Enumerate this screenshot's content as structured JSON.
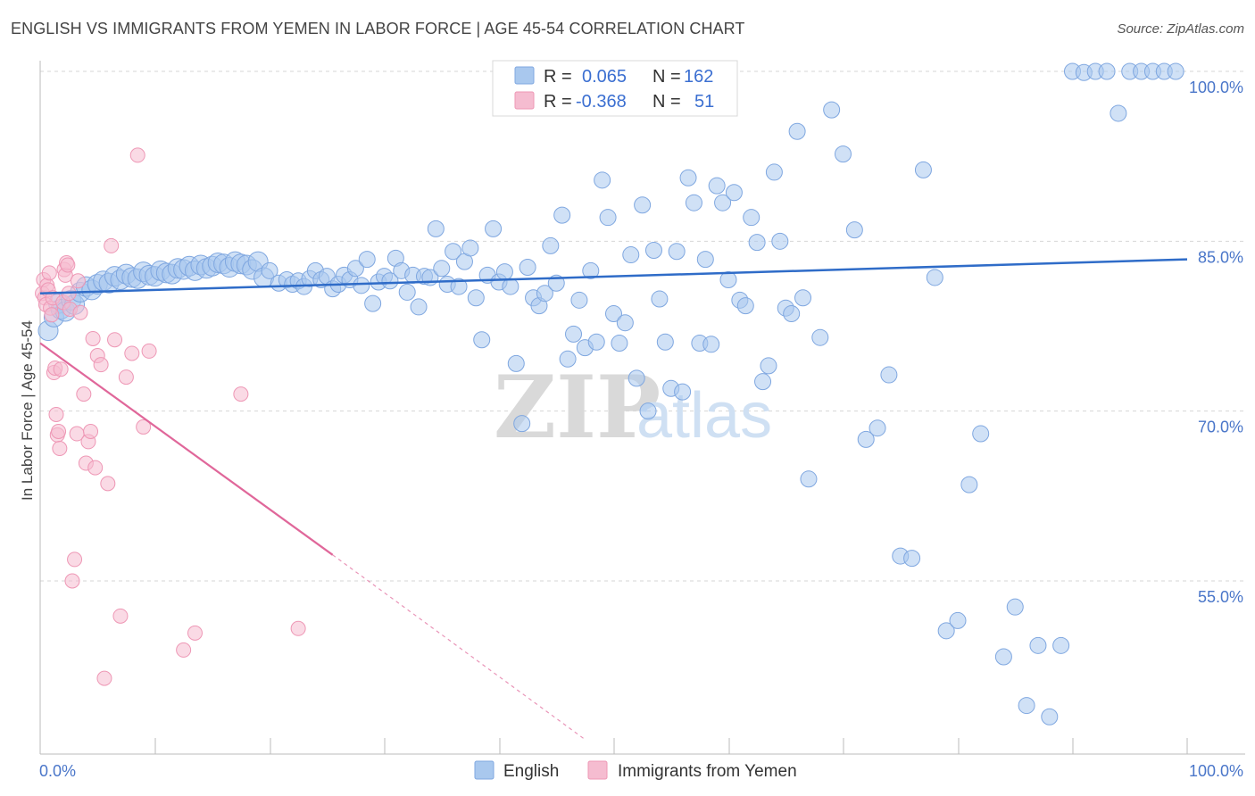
{
  "header": {
    "title": "ENGLISH VS IMMIGRANTS FROM YEMEN IN LABOR FORCE | AGE 45-54 CORRELATION CHART",
    "source": "Source: ZipAtlas.com"
  },
  "watermark": {
    "zip": "ZIP",
    "atlas": "atlas"
  },
  "legend": {
    "english": {
      "r_label": "R =",
      "r_value": "0.065",
      "n_label": "N =",
      "n_value": "162"
    },
    "yemen": {
      "r_label": "R =",
      "r_value": "-0.368",
      "n_label": "N =",
      "n_value": "51"
    }
  },
  "colors": {
    "english_fill": "#a9c8ee",
    "english_stroke": "#7fa7e0",
    "english_line": "#2f6cc8",
    "yemen_fill": "#f5bcd0",
    "yemen_stroke": "#ee97b5",
    "yemen_line": "#e0679a",
    "tick_label": "#4a76c9",
    "grid": "#d6d6d6"
  },
  "chart_data": {
    "type": "scatter",
    "title": "ENGLISH VS IMMIGRANTS FROM YEMEN IN LABOR FORCE | AGE 45-54 CORRELATION CHART",
    "xlabel": "",
    "ylabel": "In Labor Force | Age 45-54",
    "xlim": [
      0,
      100
    ],
    "ylim": [
      41,
      102
    ],
    "x_tick_labels": [
      "0.0%",
      "100.0%"
    ],
    "y_ticks": [
      55,
      70,
      85,
      100
    ],
    "y_tick_labels": [
      "55.0%",
      "70.0%",
      "85.0%",
      "100.0%"
    ],
    "grid": true,
    "legend_position": "top-center",
    "bottom_legend": [
      "English",
      "Immigrants from Yemen"
    ],
    "series": [
      {
        "name": "English",
        "r": 0.065,
        "n": 162,
        "trend": {
          "x": [
            0,
            100
          ],
          "y": [
            80.4,
            83.4
          ],
          "style": "solid"
        },
        "points": [
          [
            0.7,
            77.1
          ],
          [
            1.2,
            78.3
          ],
          [
            1.6,
            79.5
          ],
          [
            1.8,
            79.0
          ],
          [
            2.2,
            78.8
          ],
          [
            2.7,
            79.8
          ],
          [
            3.0,
            79.4
          ],
          [
            3.5,
            80.5
          ],
          [
            4.0,
            81.0
          ],
          [
            4.5,
            80.7
          ],
          [
            5.0,
            81.2
          ],
          [
            5.5,
            81.5
          ],
          [
            6.0,
            81.3
          ],
          [
            6.5,
            81.9
          ],
          [
            7.0,
            81.6
          ],
          [
            7.5,
            82.1
          ],
          [
            8.0,
            81.8
          ],
          [
            8.5,
            81.7
          ],
          [
            9.0,
            82.3
          ],
          [
            9.5,
            82.0
          ],
          [
            10.0,
            81.9
          ],
          [
            10.5,
            82.4
          ],
          [
            11.0,
            82.2
          ],
          [
            11.5,
            82.1
          ],
          [
            12.0,
            82.6
          ],
          [
            12.5,
            82.5
          ],
          [
            13.0,
            82.8
          ],
          [
            13.5,
            82.4
          ],
          [
            14.0,
            82.9
          ],
          [
            14.5,
            82.6
          ],
          [
            15.0,
            82.8
          ],
          [
            15.5,
            83.1
          ],
          [
            16.0,
            83.0
          ],
          [
            16.5,
            82.7
          ],
          [
            17.0,
            83.2
          ],
          [
            17.5,
            83.0
          ],
          [
            18.0,
            82.9
          ],
          [
            18.5,
            82.5
          ],
          [
            19.0,
            83.2
          ],
          [
            19.5,
            81.8
          ],
          [
            20.0,
            82.4
          ],
          [
            20.8,
            81.3
          ],
          [
            21.5,
            81.6
          ],
          [
            22.0,
            81.2
          ],
          [
            22.5,
            81.5
          ],
          [
            23.0,
            81.0
          ],
          [
            23.5,
            81.7
          ],
          [
            24.0,
            82.4
          ],
          [
            24.5,
            81.6
          ],
          [
            25.0,
            81.9
          ],
          [
            25.5,
            80.8
          ],
          [
            26.0,
            81.2
          ],
          [
            26.5,
            82.0
          ],
          [
            27.0,
            81.6
          ],
          [
            27.5,
            82.6
          ],
          [
            28.0,
            81.1
          ],
          [
            28.5,
            83.4
          ],
          [
            29.0,
            79.5
          ],
          [
            29.5,
            81.4
          ],
          [
            30.0,
            81.9
          ],
          [
            30.5,
            81.5
          ],
          [
            31.0,
            83.5
          ],
          [
            31.5,
            82.4
          ],
          [
            32.0,
            80.5
          ],
          [
            32.5,
            82.0
          ],
          [
            33.0,
            79.2
          ],
          [
            33.5,
            81.9
          ],
          [
            34.0,
            81.8
          ],
          [
            34.5,
            86.1
          ],
          [
            35.0,
            82.6
          ],
          [
            35.5,
            81.2
          ],
          [
            36.0,
            84.1
          ],
          [
            36.5,
            81.0
          ],
          [
            37.0,
            83.2
          ],
          [
            37.5,
            84.4
          ],
          [
            38.0,
            80.0
          ],
          [
            38.5,
            76.3
          ],
          [
            39.0,
            82.0
          ],
          [
            39.5,
            86.1
          ],
          [
            40.0,
            81.4
          ],
          [
            40.5,
            82.3
          ],
          [
            41.0,
            81.0
          ],
          [
            41.5,
            74.2
          ],
          [
            42.0,
            68.9
          ],
          [
            42.5,
            82.7
          ],
          [
            43.0,
            80.0
          ],
          [
            43.5,
            79.3
          ],
          [
            44.0,
            80.4
          ],
          [
            44.5,
            84.6
          ],
          [
            45.0,
            81.3
          ],
          [
            45.5,
            87.3
          ],
          [
            46.0,
            74.6
          ],
          [
            46.5,
            76.8
          ],
          [
            47.0,
            79.8
          ],
          [
            47.5,
            75.6
          ],
          [
            48.0,
            82.4
          ],
          [
            48.5,
            76.1
          ],
          [
            49.0,
            90.4
          ],
          [
            49.5,
            87.1
          ],
          [
            50.0,
            78.6
          ],
          [
            50.5,
            76.0
          ],
          [
            51.0,
            77.8
          ],
          [
            51.5,
            83.8
          ],
          [
            52.0,
            72.9
          ],
          [
            52.5,
            88.2
          ],
          [
            53.0,
            70.0
          ],
          [
            53.5,
            84.2
          ],
          [
            54.0,
            79.9
          ],
          [
            54.5,
            76.1
          ],
          [
            55.0,
            72.0
          ],
          [
            55.5,
            84.1
          ],
          [
            56.0,
            71.7
          ],
          [
            56.5,
            90.6
          ],
          [
            57.0,
            88.4
          ],
          [
            57.5,
            76.0
          ],
          [
            58.0,
            83.4
          ],
          [
            58.5,
            75.9
          ],
          [
            59.0,
            89.9
          ],
          [
            59.5,
            88.4
          ],
          [
            60.0,
            81.6
          ],
          [
            60.5,
            89.3
          ],
          [
            61.0,
            79.8
          ],
          [
            61.5,
            79.3
          ],
          [
            62.0,
            87.1
          ],
          [
            62.5,
            84.9
          ],
          [
            63.0,
            72.6
          ],
          [
            63.5,
            74.0
          ],
          [
            64.0,
            91.1
          ],
          [
            64.5,
            85.0
          ],
          [
            65.0,
            79.1
          ],
          [
            65.5,
            78.6
          ],
          [
            66.0,
            94.7
          ],
          [
            66.5,
            80.0
          ],
          [
            67.0,
            64.0
          ],
          [
            68.0,
            76.5
          ],
          [
            69.0,
            96.6
          ],
          [
            70.0,
            92.7
          ],
          [
            71.0,
            86.0
          ],
          [
            72.0,
            67.5
          ],
          [
            73.0,
            68.5
          ],
          [
            74.0,
            73.2
          ],
          [
            75.0,
            57.2
          ],
          [
            76.0,
            57.0
          ],
          [
            77.0,
            91.3
          ],
          [
            78.0,
            81.8
          ],
          [
            79.0,
            50.6
          ],
          [
            80.0,
            51.5
          ],
          [
            81.0,
            63.5
          ],
          [
            82.0,
            68.0
          ],
          [
            84.0,
            48.3
          ],
          [
            85.0,
            52.7
          ],
          [
            86.0,
            44.0
          ],
          [
            87.0,
            49.3
          ],
          [
            88.0,
            43.0
          ],
          [
            89.0,
            49.3
          ],
          [
            90.0,
            100.0
          ],
          [
            91.0,
            99.9
          ],
          [
            92.0,
            100.0
          ],
          [
            93.0,
            100.0
          ],
          [
            94.0,
            96.3
          ],
          [
            95.0,
            100.0
          ],
          [
            96.0,
            100.0
          ],
          [
            97.0,
            100.0
          ],
          [
            98.0,
            100.0
          ],
          [
            99.0,
            100.0
          ]
        ]
      },
      {
        "name": "Immigrants from Yemen",
        "r": -0.368,
        "n": 51,
        "trend": {
          "x": [
            0,
            25.5
          ],
          "y": [
            76.0,
            57.3
          ],
          "style": "solid",
          "dashed_extension_to": [
            47.5,
            41.0
          ]
        },
        "points": [
          [
            0.2,
            80.4
          ],
          [
            0.3,
            81.6
          ],
          [
            0.4,
            80.0
          ],
          [
            0.5,
            79.4
          ],
          [
            0.6,
            81.1
          ],
          [
            0.7,
            80.7
          ],
          [
            0.8,
            82.2
          ],
          [
            0.9,
            79.1
          ],
          [
            1.0,
            78.5
          ],
          [
            1.1,
            80.0
          ],
          [
            1.2,
            73.4
          ],
          [
            1.3,
            73.8
          ],
          [
            1.4,
            69.7
          ],
          [
            1.5,
            67.9
          ],
          [
            1.6,
            68.2
          ],
          [
            1.7,
            66.7
          ],
          [
            1.8,
            73.7
          ],
          [
            2.0,
            79.6
          ],
          [
            2.1,
            82.5
          ],
          [
            2.2,
            82.0
          ],
          [
            2.3,
            83.1
          ],
          [
            2.4,
            82.9
          ],
          [
            2.5,
            80.4
          ],
          [
            2.6,
            79.0
          ],
          [
            2.8,
            55.0
          ],
          [
            3.0,
            56.9
          ],
          [
            3.2,
            68.0
          ],
          [
            3.3,
            81.5
          ],
          [
            3.5,
            78.7
          ],
          [
            3.8,
            71.5
          ],
          [
            4.0,
            65.4
          ],
          [
            4.2,
            67.3
          ],
          [
            4.4,
            68.2
          ],
          [
            4.6,
            76.4
          ],
          [
            4.8,
            65.0
          ],
          [
            5.0,
            74.9
          ],
          [
            5.3,
            74.1
          ],
          [
            5.6,
            46.4
          ],
          [
            5.9,
            63.6
          ],
          [
            6.2,
            84.6
          ],
          [
            6.5,
            76.3
          ],
          [
            7.0,
            51.9
          ],
          [
            7.5,
            73.0
          ],
          [
            8.0,
            75.1
          ],
          [
            8.5,
            92.6
          ],
          [
            9.0,
            68.6
          ],
          [
            9.5,
            75.3
          ],
          [
            12.5,
            48.9
          ],
          [
            13.5,
            50.4
          ],
          [
            17.5,
            71.5
          ],
          [
            22.5,
            50.8
          ]
        ]
      }
    ]
  }
}
